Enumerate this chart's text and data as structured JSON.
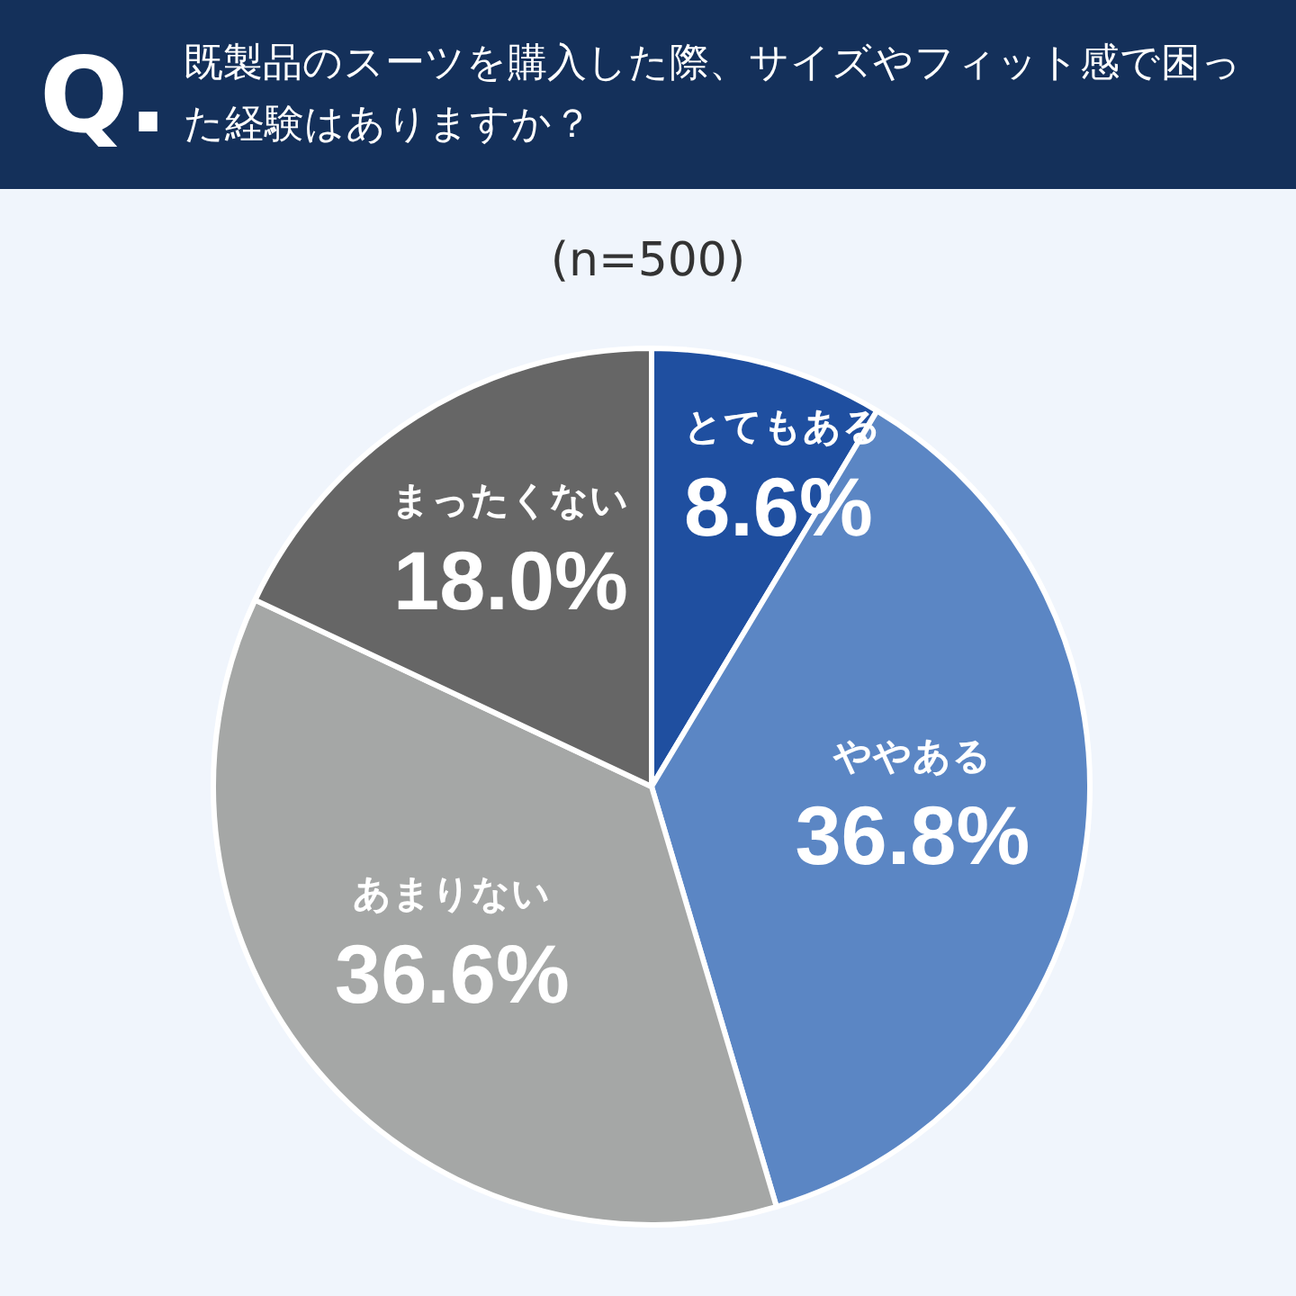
{
  "chart_data": {
    "type": "pie",
    "title": "既製品のスーツを購入した際、サイズやフィット感で困った経験はありますか？",
    "subtitle": "(n=500)",
    "annotations": [
      "Q."
    ],
    "categories": [
      "とてもある",
      "ややある",
      "あまりない",
      "まったくない"
    ],
    "values": [
      8.6,
      36.8,
      36.6,
      18.0
    ],
    "value_labels": [
      "8.6%",
      "36.8%",
      "36.6%",
      "18.0%"
    ],
    "colors": [
      "#1f4fa0",
      "#5b86c4",
      "#a5a7a6",
      "#666666"
    ],
    "legend": false
  }
}
